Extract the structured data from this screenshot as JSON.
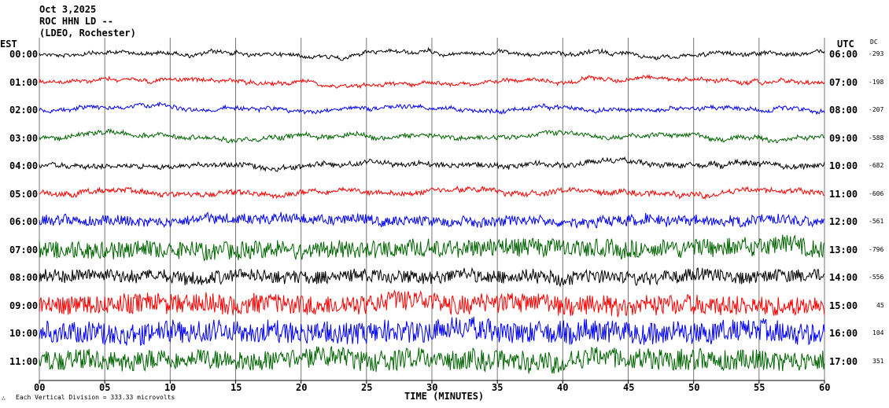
{
  "header": {
    "date": "Oct 3,2025",
    "station": "ROC HHN LD --",
    "network": "(LDEO, Rochester)"
  },
  "footer": {
    "scale_note": "Each Vertical Division = 333.33 microvolts",
    "corner_mark": "∴"
  },
  "chart_data": {
    "type": "line",
    "title": "",
    "xlabel": "TIME (MINUTES)",
    "left_axis_label": "EST",
    "right_axis_label": "UTC",
    "dc_header": "DC",
    "xlim": [
      0,
      60
    ],
    "x_ticks": [
      "00",
      "05",
      "10",
      "15",
      "20",
      "25",
      "30",
      "35",
      "40",
      "45",
      "50",
      "55",
      "60"
    ],
    "grid": "vertical lines every 5 minutes",
    "series": [
      {
        "est": "00:00",
        "utc": "06:00",
        "dc": "-293",
        "color": "#000000",
        "noise": 0.3
      },
      {
        "est": "01:00",
        "utc": "07:00",
        "dc": "-198",
        "color": "#ff0000",
        "noise": 0.3
      },
      {
        "est": "02:00",
        "utc": "08:00",
        "dc": "-207",
        "color": "#0000ff",
        "noise": 0.32
      },
      {
        "est": "03:00",
        "utc": "09:00",
        "dc": "-588",
        "color": "#006400",
        "noise": 0.38
      },
      {
        "est": "04:00",
        "utc": "10:00",
        "dc": "-682",
        "color": "#000000",
        "noise": 0.42
      },
      {
        "est": "05:00",
        "utc": "11:00",
        "dc": "-606",
        "color": "#ff0000",
        "noise": 0.45
      },
      {
        "est": "06:00",
        "utc": "12:00",
        "dc": "-561",
        "color": "#0000ff",
        "noise": 0.9
      },
      {
        "est": "07:00",
        "utc": "13:00",
        "dc": "-796",
        "color": "#006400",
        "noise": 1.6
      },
      {
        "est": "08:00",
        "utc": "14:00",
        "dc": "-556",
        "color": "#000000",
        "noise": 1.2
      },
      {
        "est": "09:00",
        "utc": "15:00",
        "dc": "45",
        "color": "#ff0000",
        "noise": 1.8
      },
      {
        "est": "10:00",
        "utc": "16:00",
        "dc": "104",
        "color": "#0000ff",
        "noise": 2.0
      },
      {
        "est": "11:00",
        "utc": "17:00",
        "dc": "351",
        "color": "#006400",
        "noise": 1.9
      }
    ]
  }
}
